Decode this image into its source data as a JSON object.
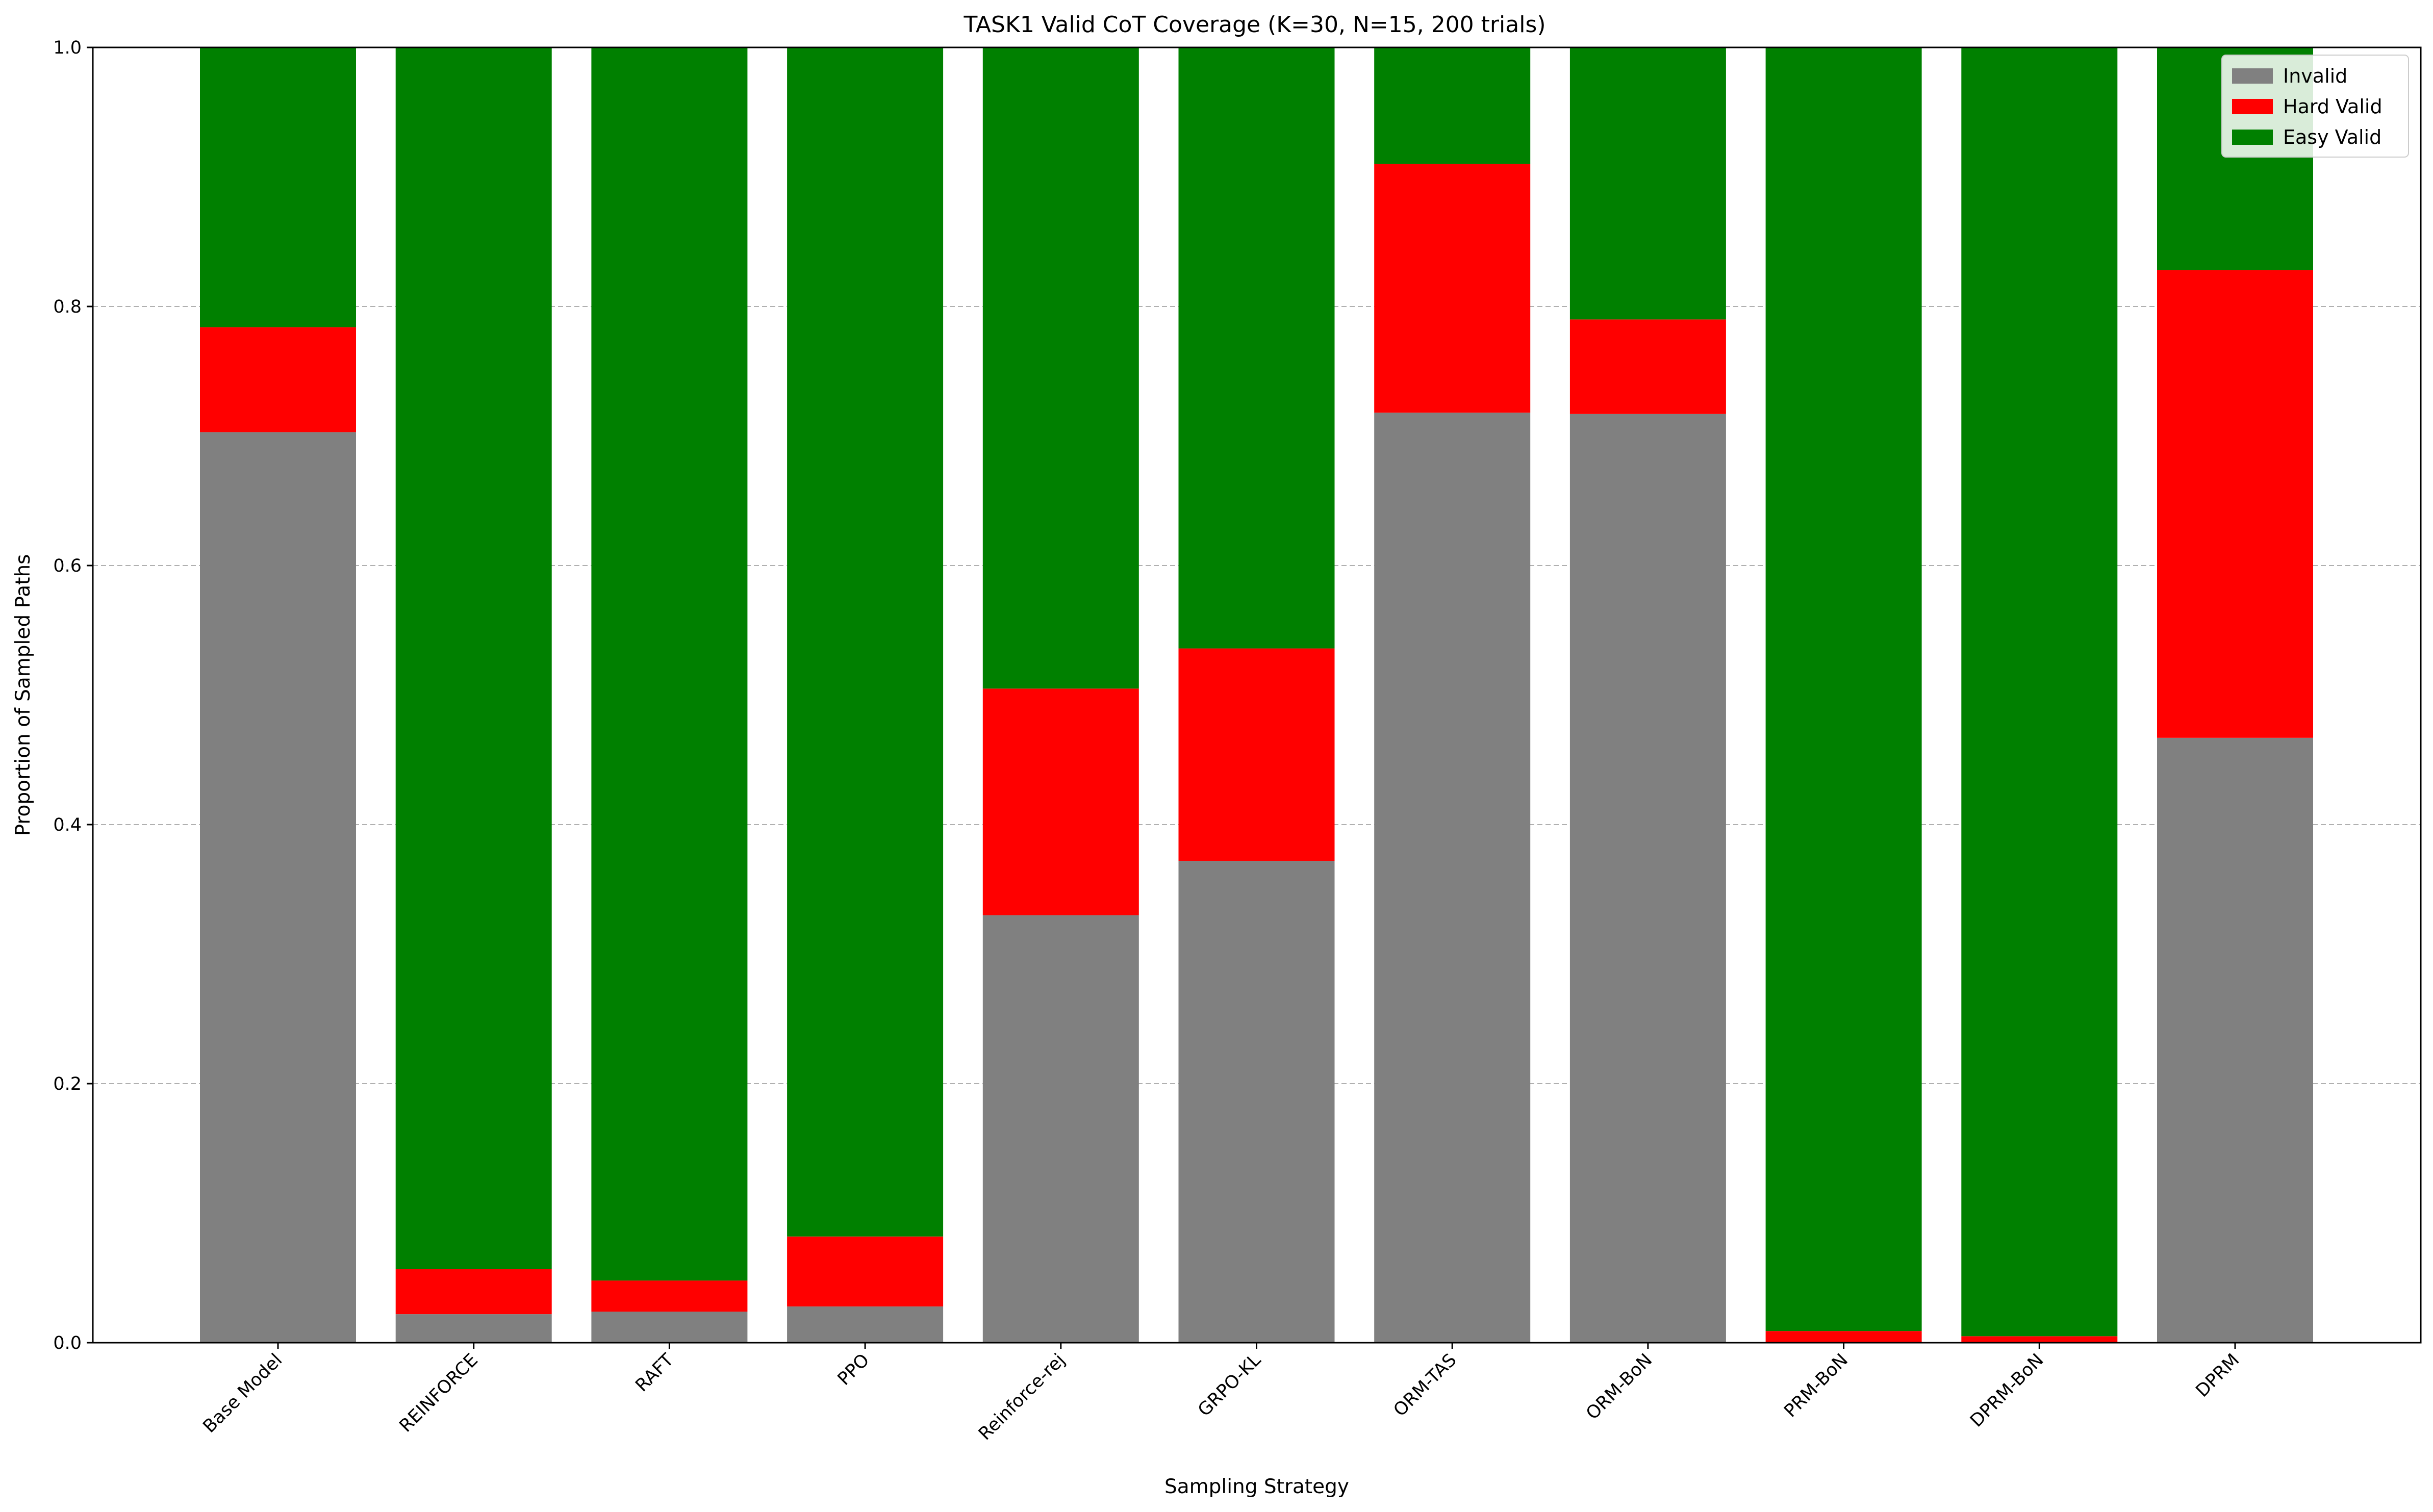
{
  "chart_data": {
    "type": "bar",
    "stacked": true,
    "title": "TASK1 Valid CoT Coverage (K=30, N=15, 200 trials)",
    "xlabel": "Sampling Strategy",
    "ylabel": "Proportion of Sampled Paths",
    "ylim": [
      0,
      1.0
    ],
    "yticks": [
      "0.0",
      "0.2",
      "0.4",
      "0.6",
      "0.8",
      "1.0"
    ],
    "grid": "y-dashed",
    "legend_position": "top-right",
    "categories": [
      "Base Model",
      "REINFORCE",
      "RAFT",
      "PPO",
      "Reinforce-rej",
      "GRPO-KL",
      "ORM-TAS",
      "ORM-BoN",
      "PRM-BoN",
      "DPRM-BoN",
      "DPRM"
    ],
    "series": [
      {
        "name": "Invalid",
        "color": "#808080",
        "values": [
          0.703,
          0.022,
          0.024,
          0.028,
          0.33,
          0.372,
          0.718,
          0.717,
          0.0,
          0.0,
          0.467
        ]
      },
      {
        "name": "Hard Valid",
        "color": "#ff0000",
        "values": [
          0.081,
          0.035,
          0.024,
          0.054,
          0.175,
          0.164,
          0.192,
          0.073,
          0.009,
          0.005,
          0.361
        ]
      },
      {
        "name": "Easy Valid",
        "color": "#008000",
        "values": [
          0.216,
          0.943,
          0.952,
          0.918,
          0.495,
          0.464,
          0.09,
          0.21,
          0.991,
          0.995,
          0.172
        ]
      }
    ]
  }
}
